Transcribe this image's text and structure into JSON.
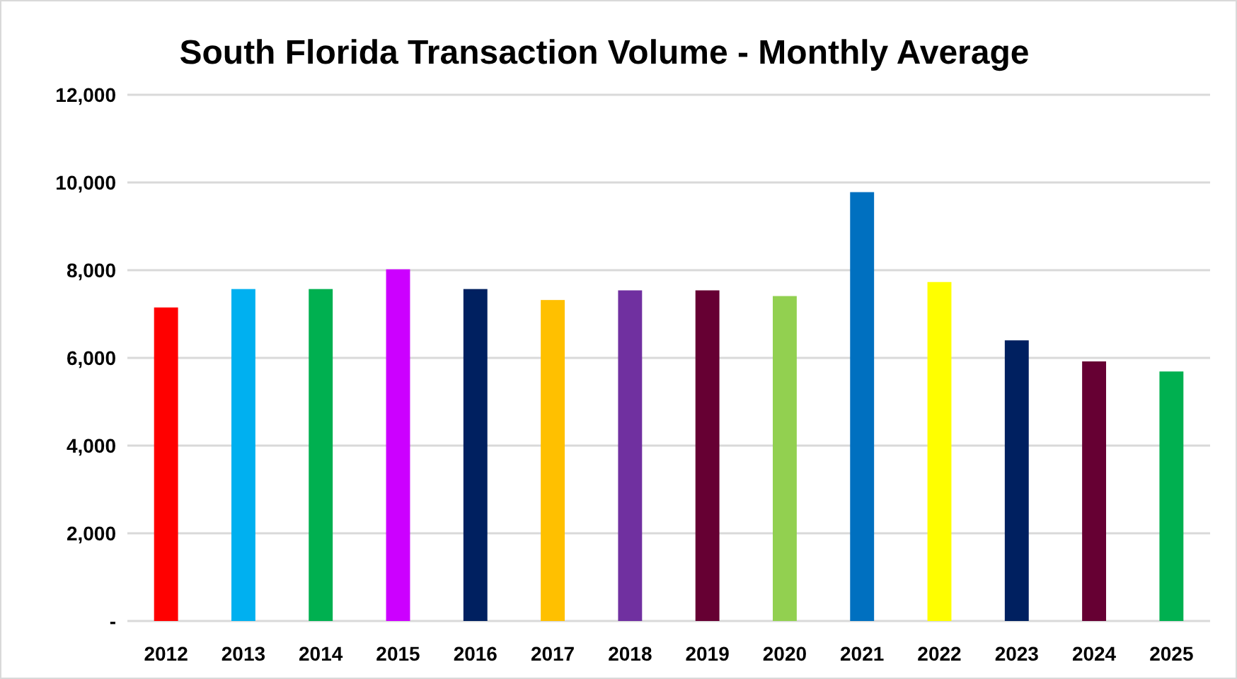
{
  "chart_data": {
    "type": "bar",
    "title": "South Florida Transaction Volume - Monthly Average",
    "categories": [
      "2012",
      "2013",
      "2014",
      "2015",
      "2016",
      "2017",
      "2018",
      "2019",
      "2020",
      "2021",
      "2022",
      "2023",
      "2024",
      "2025"
    ],
    "values": [
      7150,
      7570,
      7570,
      8020,
      7570,
      7320,
      7540,
      7540,
      7410,
      9780,
      7730,
      6400,
      5920,
      5690
    ],
    "colors": [
      "#ff0000",
      "#00b0f0",
      "#00b050",
      "#cc00ff",
      "#002060",
      "#ffc000",
      "#7030a0",
      "#660033",
      "#92d050",
      "#0070c0",
      "#ffff00",
      "#002060",
      "#660033",
      "#00b050"
    ],
    "ylim": [
      0,
      12000
    ],
    "yticks": [
      {
        "value": 0,
        "label": "-"
      },
      {
        "value": 2000,
        "label": "2,000"
      },
      {
        "value": 4000,
        "label": "4,000"
      },
      {
        "value": 6000,
        "label": "6,000"
      },
      {
        "value": 8000,
        "label": "8,000"
      },
      {
        "value": 10000,
        "label": "10,000"
      },
      {
        "value": 12000,
        "label": "12,000"
      }
    ],
    "grid": "y"
  }
}
